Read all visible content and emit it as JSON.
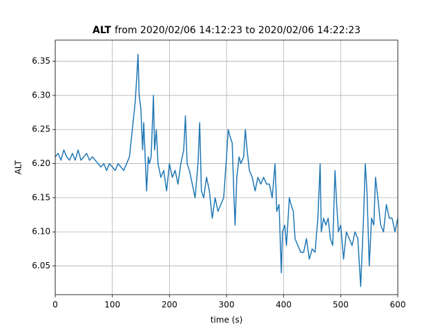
{
  "chart_data": {
    "type": "line",
    "title": {
      "bold": "ALT",
      "text": "from 2020/02/06 14:12:23 to 2020/02/06 14:22:23"
    },
    "x_label": "time (s)",
    "y_label": "ALT",
    "x": [
      0,
      5,
      10,
      15,
      20,
      25,
      30,
      35,
      40,
      45,
      50,
      55,
      60,
      65,
      70,
      75,
      80,
      85,
      90,
      95,
      100,
      105,
      110,
      115,
      120,
      125,
      130,
      135,
      140,
      143,
      145,
      147,
      150,
      153,
      155,
      158,
      160,
      163,
      165,
      168,
      172,
      174,
      177,
      180,
      185,
      190,
      195,
      200,
      205,
      210,
      215,
      220,
      225,
      228,
      231,
      235,
      240,
      245,
      250,
      253,
      256,
      260,
      265,
      270,
      275,
      280,
      285,
      290,
      295,
      300,
      303,
      306,
      310,
      313,
      315,
      318,
      322,
      325,
      330,
      333,
      336,
      340,
      345,
      350,
      355,
      360,
      365,
      370,
      375,
      380,
      385,
      388,
      392,
      396,
      398,
      402,
      405,
      410,
      413,
      417,
      420,
      425,
      430,
      435,
      440,
      445,
      450,
      455,
      460,
      464,
      466,
      470,
      474,
      478,
      482,
      486,
      490,
      493,
      496,
      500,
      505,
      510,
      515,
      520,
      525,
      530,
      535,
      540,
      543,
      546,
      550,
      554,
      558,
      561,
      565,
      570,
      575,
      580,
      585,
      590,
      595,
      600
    ],
    "values": [
      6.21,
      6.215,
      6.205,
      6.22,
      6.21,
      6.205,
      6.215,
      6.205,
      6.22,
      6.205,
      6.21,
      6.215,
      6.205,
      6.21,
      6.205,
      6.2,
      6.195,
      6.2,
      6.19,
      6.2,
      6.195,
      6.19,
      6.2,
      6.195,
      6.19,
      6.2,
      6.21,
      6.25,
      6.29,
      6.33,
      6.36,
      6.3,
      6.28,
      6.22,
      6.26,
      6.2,
      6.16,
      6.21,
      6.2,
      6.21,
      6.3,
      6.22,
      6.25,
      6.2,
      6.18,
      6.19,
      6.16,
      6.2,
      6.18,
      6.19,
      6.17,
      6.2,
      6.22,
      6.27,
      6.2,
      6.19,
      6.17,
      6.15,
      6.2,
      6.26,
      6.16,
      6.15,
      6.18,
      6.16,
      6.12,
      6.15,
      6.13,
      6.14,
      6.15,
      6.21,
      6.25,
      6.24,
      6.23,
      6.15,
      6.11,
      6.18,
      6.21,
      6.2,
      6.21,
      6.25,
      6.22,
      6.19,
      6.18,
      6.16,
      6.18,
      6.17,
      6.18,
      6.17,
      6.17,
      6.15,
      6.2,
      6.13,
      6.14,
      6.04,
      6.1,
      6.11,
      6.08,
      6.15,
      6.14,
      6.13,
      6.09,
      6.08,
      6.07,
      6.07,
      6.09,
      6.06,
      6.075,
      6.07,
      6.12,
      6.2,
      6.1,
      6.12,
      6.11,
      6.12,
      6.09,
      6.08,
      6.19,
      6.14,
      6.1,
      6.11,
      6.06,
      6.1,
      6.09,
      6.08,
      6.1,
      6.09,
      6.02,
      6.12,
      6.2,
      6.16,
      6.05,
      6.12,
      6.11,
      6.18,
      6.15,
      6.11,
      6.1,
      6.14,
      6.12,
      6.12,
      6.1,
      6.12
    ],
    "color": "#1f77b4",
    "xlim": [
      0,
      600
    ],
    "xticks": [
      0,
      100,
      200,
      300,
      400,
      500,
      600
    ],
    "ylim": [
      6.008,
      6.381
    ],
    "yticks": [
      6.05,
      {
        "value": 6.1,
        "label": "6.10"
      },
      6.15,
      {
        "value": 6.2,
        "label": "6.20"
      },
      6.25,
      {
        "value": 6.3,
        "label": "6.30"
      },
      6.35
    ],
    "grid": true
  }
}
